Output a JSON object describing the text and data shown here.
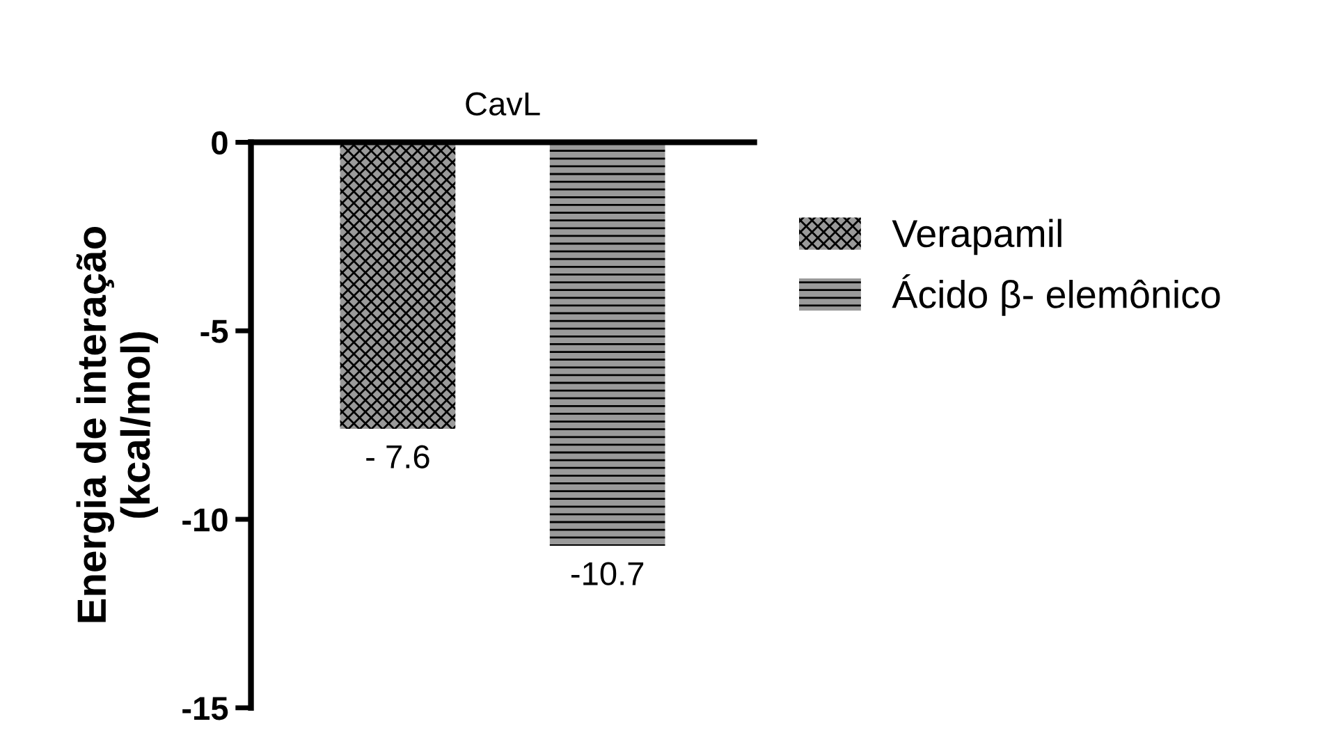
{
  "chart_data": {
    "type": "bar",
    "title": "CavL",
    "ylabel": "Energia de interação\n(kcal/mol)",
    "categories": [
      null,
      null
    ],
    "series": [
      {
        "name": "Verapamil",
        "color": "#9a9a9a",
        "values": [
          -7.6,
          null
        ],
        "value_labels": [
          "- 7.6",
          null
        ]
      },
      {
        "name": "Ácido β- elemônico",
        "color": "#9a9a9a",
        "values": [
          null,
          -10.7
        ],
        "value_labels": [
          null,
          "-10.7"
        ]
      }
    ],
    "ylim": [
      -15,
      0
    ],
    "yticks": [
      0,
      -5,
      -10,
      -15
    ],
    "tick_labels": "y",
    "grid": false,
    "legend": "right"
  }
}
